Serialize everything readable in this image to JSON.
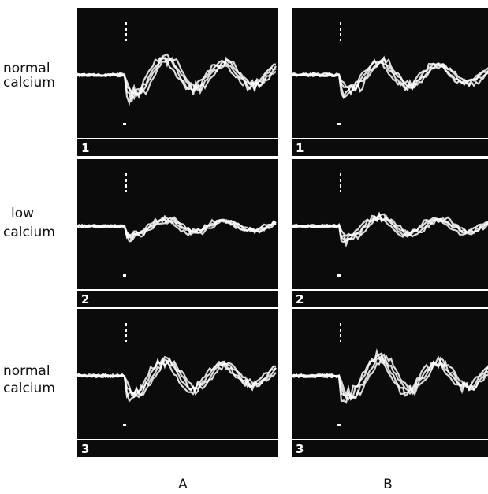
{
  "row_labels": [
    [
      "normal",
      "calcium"
    ],
    [
      "low",
      "calcium"
    ],
    [
      "normal",
      "calcium"
    ]
  ],
  "panel_numbers": [
    [
      "1",
      "1"
    ],
    [
      "2",
      "2"
    ],
    [
      "3",
      "3"
    ]
  ],
  "column_labels": [
    "A",
    "B"
  ]
}
